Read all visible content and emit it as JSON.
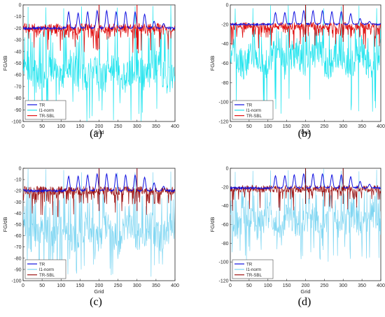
{
  "colors": {
    "TR": "#1010e0",
    "l1_norm": "#22e4ee",
    "l1_norm_pale": "#7fd6f2",
    "TR_SBL": "#e01010",
    "TR_SBL_dark": "#a01818",
    "spike_a": "#dd1010",
    "spike_b": "#a01010",
    "spike_c": "#8a1020",
    "spike_d": "#7a1010"
  },
  "captions": [
    "(a)",
    "(b)",
    "(c)",
    "(d)"
  ],
  "chart_data": [
    {
      "type": "line",
      "panel": "(a)",
      "xlabel": "Grid",
      "ylabel": "FG/dB",
      "xlim": [
        0,
        400
      ],
      "ylim": [
        -100,
        0
      ],
      "xticks": [
        0,
        50,
        100,
        150,
        200,
        250,
        300,
        350,
        400
      ],
      "yticks": [
        0,
        -10,
        -20,
        -30,
        -40,
        -50,
        -60,
        -70,
        -80,
        -90,
        -100
      ],
      "legend_position": "bottom-left",
      "l1_style": "bright",
      "spike_color": "spike_a",
      "spikes_at": [
        200,
        300
      ],
      "series": [
        {
          "name": "TR",
          "key": "TR",
          "baseline": -20,
          "peaks": [
            -6,
            -7,
            -6,
            -5,
            -5,
            -6,
            -6,
            -6,
            -8,
            -14,
            -16
          ]
        },
        {
          "name": "l1-norm",
          "key": "l1_norm",
          "mean": -58,
          "spread": 14,
          "minimum": -100
        },
        {
          "name": "TR-SBL",
          "key": "TR_SBL",
          "mean": -20,
          "spread": 4,
          "minimum": -30
        }
      ]
    },
    {
      "type": "line",
      "panel": "(b)",
      "xlabel": "Grid",
      "ylabel": "FG/dB",
      "xlim": [
        0,
        400
      ],
      "ylim": [
        -120,
        0
      ],
      "xticks": [
        0,
        50,
        100,
        150,
        200,
        250,
        300,
        350,
        400
      ],
      "yticks": [
        0,
        -20,
        -40,
        -60,
        -80,
        -100,
        -120
      ],
      "legend_position": "bottom-left",
      "l1_style": "bright",
      "spike_color": "spike_b",
      "spikes_at": [
        200,
        300
      ],
      "series": [
        {
          "name": "TR",
          "key": "TR",
          "baseline": -20,
          "peaks": [
            -8,
            -8,
            -7,
            -6,
            -6,
            -6,
            -7,
            -7,
            -9,
            -14,
            -17
          ]
        },
        {
          "name": "l1-norm",
          "key": "l1_norm",
          "mean": -55,
          "spread": 16,
          "minimum": -112
        },
        {
          "name": "TR-SBL",
          "key": "TR_SBL",
          "mean": -22,
          "spread": 4,
          "minimum": -34
        }
      ]
    },
    {
      "type": "line",
      "panel": "(c)",
      "xlabel": "Grid",
      "ylabel": "FG/dB",
      "xlim": [
        0,
        400
      ],
      "ylim": [
        -100,
        0
      ],
      "xticks": [
        0,
        50,
        100,
        150,
        200,
        250,
        300,
        350,
        400
      ],
      "yticks": [
        0,
        -10,
        -20,
        -30,
        -40,
        -50,
        -60,
        -70,
        -80,
        -90,
        -100
      ],
      "legend_position": "bottom-left",
      "l1_style": "pale",
      "spike_color": "spike_c",
      "spikes_at": [
        200,
        300
      ],
      "series": [
        {
          "name": "TR",
          "key": "TR",
          "baseline": -20,
          "peaks": [
            -7,
            -7,
            -6,
            -5,
            -5,
            -5,
            -6,
            -6,
            -8,
            -13,
            -16
          ]
        },
        {
          "name": "l1-norm",
          "key": "l1_norm_pale",
          "mean": -57,
          "spread": 14,
          "minimum": -98
        },
        {
          "name": "TR-SBL",
          "key": "TR_SBL_dark",
          "mean": -20,
          "spread": 4,
          "minimum": -32
        }
      ]
    },
    {
      "type": "line",
      "panel": "(d)",
      "xlabel": "Grid",
      "ylabel": "FG/dB",
      "xlim": [
        0,
        400
      ],
      "ylim": [
        -120,
        0
      ],
      "xticks": [
        0,
        50,
        100,
        150,
        200,
        250,
        300,
        350,
        400
      ],
      "yticks": [
        0,
        -20,
        -40,
        -60,
        -80,
        -100,
        -120
      ],
      "legend_position": "bottom-left",
      "l1_style": "pale",
      "spike_color": "spike_d",
      "spikes_at": [
        200,
        300
      ],
      "series": [
        {
          "name": "TR",
          "key": "TR",
          "baseline": -21,
          "peaks": [
            -8,
            -8,
            -7,
            -6,
            -6,
            -6,
            -7,
            -7,
            -9,
            -14,
            -17
          ]
        },
        {
          "name": "l1-norm",
          "key": "l1_norm_pale",
          "mean": -56,
          "spread": 16,
          "minimum": -100
        },
        {
          "name": "TR-SBL",
          "key": "TR_SBL_dark",
          "mean": -22,
          "spread": 4,
          "minimum": -34
        }
      ]
    }
  ]
}
